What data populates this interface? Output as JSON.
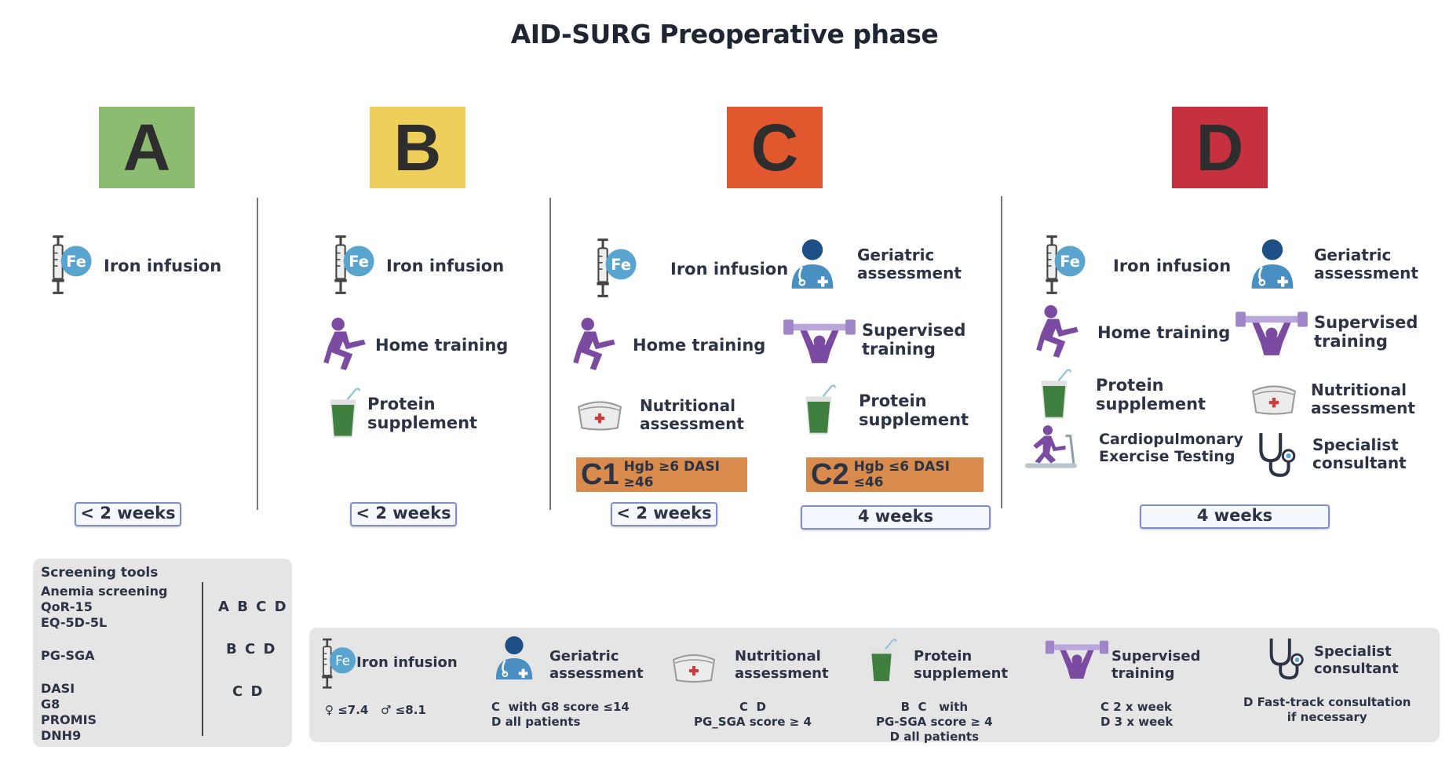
{
  "title": "AID-SURG Preoperative phase",
  "colors": {
    "A": "#8cbc6f",
    "B": "#efcf5b",
    "C": "#e2582e",
    "D": "#c7303f",
    "icon_blue": "#4a8fc2",
    "icon_purple": "#7a4ba0",
    "fe_bubble": "#5aa5cf",
    "c_box": "#d98b4e"
  },
  "columns": {
    "A": {
      "letter": "A",
      "items": [
        "Iron infusion"
      ],
      "duration": "< 2 weeks"
    },
    "B": {
      "letter": "B",
      "items": [
        "Iron infusion",
        "Home training",
        "Protein\nsupplement"
      ],
      "duration": "< 2 weeks"
    },
    "C": {
      "letter": "C",
      "left_items": [
        "Iron infusion",
        "Home training",
        "Nutritional\nassessment"
      ],
      "right_items": [
        "Geriatric\nassessment",
        "Supervised\ntraining",
        "Protein\nsupplement"
      ],
      "c1": {
        "code": "C1",
        "criteria": "Hgb ≥6 DASI ≥46",
        "duration": "< 2 weeks"
      },
      "c2": {
        "code": "C2",
        "criteria": "Hgb ≤6 DASI ≤46",
        "duration": "4 weeks"
      }
    },
    "D": {
      "letter": "D",
      "left_items": [
        "Iron infusion",
        "Home training",
        "Protein\nsupplement",
        "Cardiopulmonary\nExercise Testing"
      ],
      "right_items": [
        "Geriatric\nassessment",
        "Supervised\ntraining",
        "Nutritional\nassessment",
        "Specialist\nconsultant"
      ],
      "duration": "4 weeks"
    }
  },
  "screening": {
    "heading": "Screening tools",
    "groups": [
      {
        "tools": "Anemia screening\nQoR-15\nEQ-5D-5L",
        "groups": "A B C D"
      },
      {
        "tools": "PG-SGA",
        "groups": "B C D"
      },
      {
        "tools": "DASI\nG8\nPROMIS\nDNH9",
        "groups": "C D"
      }
    ]
  },
  "legend": [
    {
      "label": "Iron infusion",
      "note": "♀ ≤7.4   ♂ ≤8.1"
    },
    {
      "label": "Geriatric\nassessment",
      "note": "C  with G8 score ≤14\nD all patients"
    },
    {
      "label": "Nutritional\nassessment",
      "note": "C  D\nPG_SGA score ≥ 4"
    },
    {
      "label": "Protein\nsupplement",
      "note": "B  C   with\nPG-SGA score ≥ 4\nD all patients"
    },
    {
      "label": "Supervised\ntraining",
      "note": "C 2 x week\nD 3 x week"
    },
    {
      "label": "Specialist\nconsultant",
      "note": "D Fast-track consultation\nif necessary"
    }
  ]
}
